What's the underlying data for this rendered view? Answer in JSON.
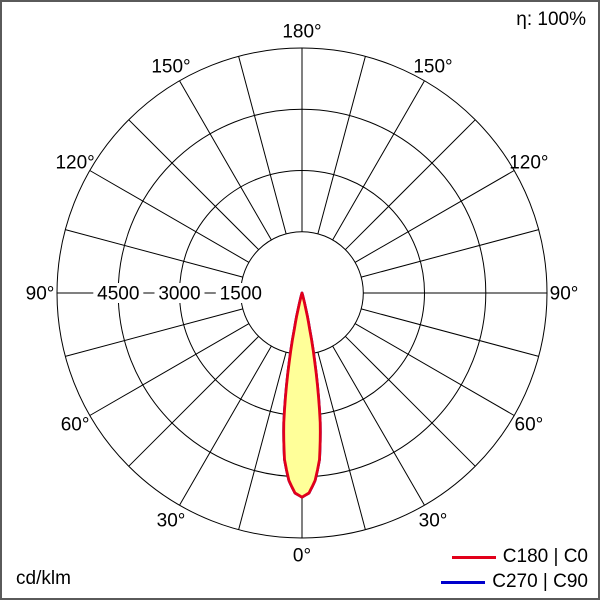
{
  "header": {
    "efficiency_label": "η: 100%"
  },
  "footer": {
    "unit_label": "cd/klm"
  },
  "legend": [
    {
      "label": "C180 | C0",
      "color": "#e2001a"
    },
    {
      "label": "C270 | C90",
      "color": "#0000cc"
    }
  ],
  "chart_data": {
    "type": "line",
    "subtype": "polar-photometric-diagram",
    "units": "cd/klm",
    "efficiency": "η: 100%",
    "rings": [
      1500,
      3000,
      4500,
      6000
    ],
    "ring_labels": [
      "4500",
      "3000",
      "1500"
    ],
    "spoke_step_deg": 15,
    "angle_label_step_deg": 30,
    "angle_labels": [
      "0°",
      "30°",
      "60°",
      "90°",
      "120°",
      "150°",
      "180°"
    ],
    "angle_range_deg": [
      0,
      180
    ],
    "grid": true,
    "legend_position": "bottom-right",
    "series": [
      {
        "name": "C180 | C0",
        "color": "#e2001a",
        "fill": "#ffff99",
        "angles_deg": [
          0,
          2,
          4,
          6,
          8,
          10,
          12,
          14,
          16
        ],
        "values": [
          5000,
          4900,
          4600,
          4100,
          3200,
          2000,
          900,
          250,
          0
        ]
      },
      {
        "name": "C270 | C90",
        "color": "#0000cc",
        "fill": "#ffff99",
        "angles_deg": [
          0,
          2,
          4,
          6,
          8,
          10,
          12,
          14,
          16
        ],
        "values": [
          5000,
          4900,
          4600,
          4100,
          3200,
          2000,
          900,
          250,
          0
        ]
      }
    ]
  }
}
